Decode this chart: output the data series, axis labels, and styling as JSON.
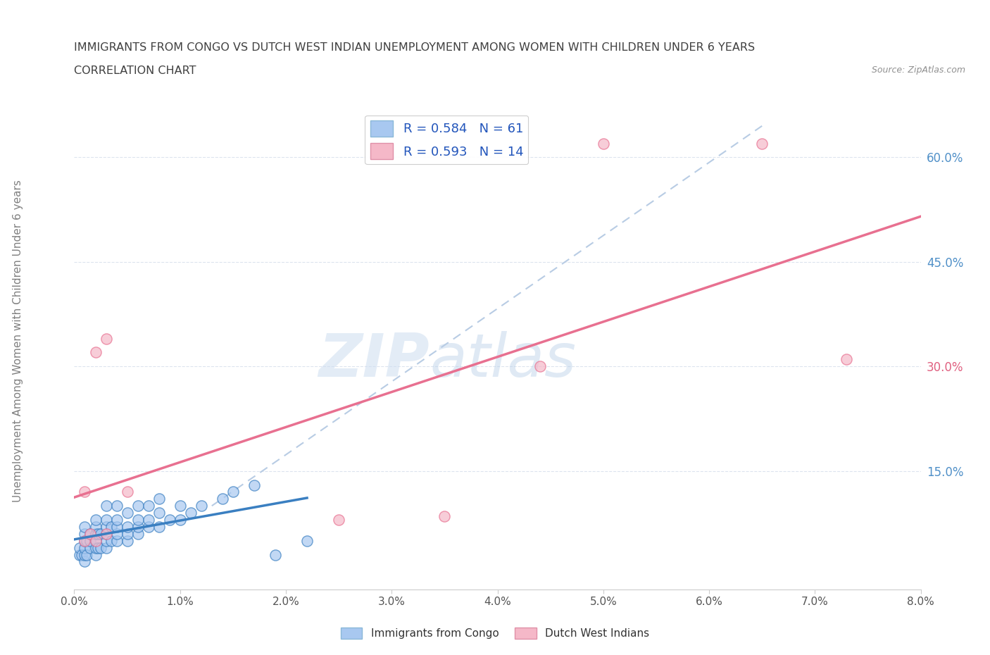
{
  "title_line1": "IMMIGRANTS FROM CONGO VS DUTCH WEST INDIAN UNEMPLOYMENT AMONG WOMEN WITH CHILDREN UNDER 6 YEARS",
  "title_line2": "CORRELATION CHART",
  "source": "Source: ZipAtlas.com",
  "ylabel": "Unemployment Among Women with Children Under 6 years",
  "xlim": [
    0.0,
    0.08
  ],
  "ylim": [
    -0.02,
    0.68
  ],
  "xtick_labels": [
    "0.0%",
    "1.0%",
    "2.0%",
    "3.0%",
    "4.0%",
    "5.0%",
    "6.0%",
    "7.0%",
    "8.0%"
  ],
  "xtick_vals": [
    0.0,
    0.01,
    0.02,
    0.03,
    0.04,
    0.05,
    0.06,
    0.07,
    0.08
  ],
  "ytick_right_labels": [
    "15.0%",
    "30.0%",
    "45.0%",
    "60.0%"
  ],
  "ytick_right_vals": [
    0.15,
    0.3,
    0.45,
    0.6
  ],
  "congo_R": 0.584,
  "congo_N": 61,
  "dwi_R": 0.593,
  "dwi_N": 14,
  "congo_color": "#a8c8f0",
  "dwi_color": "#f5b8c8",
  "congo_line_color": "#3a7fc1",
  "dwi_line_color": "#e87090",
  "diagonal_color": "#b8cce4",
  "watermark_zip": "ZIP",
  "watermark_atlas": "atlas",
  "congo_scatter_x": [
    0.0005,
    0.0005,
    0.0007,
    0.001,
    0.001,
    0.001,
    0.001,
    0.001,
    0.001,
    0.0012,
    0.0012,
    0.0015,
    0.0015,
    0.0015,
    0.002,
    0.002,
    0.002,
    0.002,
    0.002,
    0.002,
    0.0022,
    0.0022,
    0.0025,
    0.0025,
    0.003,
    0.003,
    0.003,
    0.003,
    0.003,
    0.003,
    0.0035,
    0.0035,
    0.004,
    0.004,
    0.004,
    0.004,
    0.004,
    0.005,
    0.005,
    0.005,
    0.005,
    0.006,
    0.006,
    0.006,
    0.006,
    0.007,
    0.007,
    0.007,
    0.008,
    0.008,
    0.008,
    0.009,
    0.01,
    0.01,
    0.011,
    0.012,
    0.014,
    0.015,
    0.017,
    0.019,
    0.022
  ],
  "congo_scatter_y": [
    0.03,
    0.04,
    0.03,
    0.02,
    0.03,
    0.04,
    0.05,
    0.06,
    0.07,
    0.03,
    0.05,
    0.04,
    0.05,
    0.06,
    0.03,
    0.04,
    0.05,
    0.06,
    0.07,
    0.08,
    0.04,
    0.06,
    0.04,
    0.06,
    0.04,
    0.05,
    0.06,
    0.07,
    0.08,
    0.1,
    0.05,
    0.07,
    0.05,
    0.06,
    0.07,
    0.08,
    0.1,
    0.05,
    0.06,
    0.07,
    0.09,
    0.06,
    0.07,
    0.08,
    0.1,
    0.07,
    0.08,
    0.1,
    0.07,
    0.09,
    0.11,
    0.08,
    0.08,
    0.1,
    0.09,
    0.1,
    0.11,
    0.12,
    0.13,
    0.03,
    0.05
  ],
  "dwi_scatter_x": [
    0.001,
    0.001,
    0.0015,
    0.002,
    0.002,
    0.003,
    0.003,
    0.005,
    0.025,
    0.035,
    0.044,
    0.05,
    0.065,
    0.073
  ],
  "dwi_scatter_y": [
    0.05,
    0.12,
    0.06,
    0.05,
    0.32,
    0.06,
    0.34,
    0.12,
    0.08,
    0.085,
    0.3,
    0.62,
    0.62,
    0.31
  ],
  "background_color": "#ffffff",
  "grid_color": "#dde4ee",
  "title_color": "#404040",
  "axis_label_color": "#808080",
  "right_tick_colors": [
    "#5090c8",
    "#e06080",
    "#5090c8",
    "#5090c8"
  ]
}
